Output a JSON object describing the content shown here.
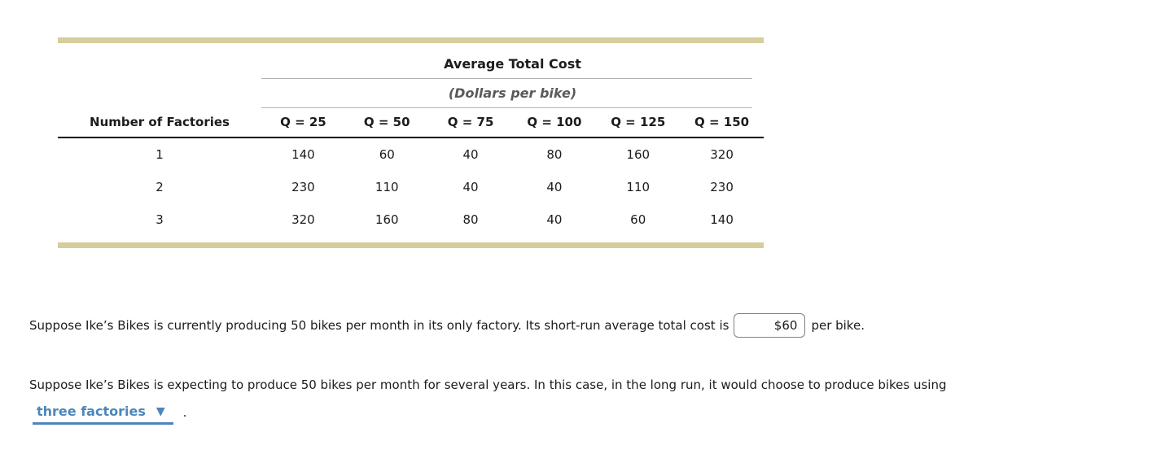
{
  "table": {
    "title": "Average Total Cost",
    "subtitle": "(Dollars per bike)",
    "row_header_label": "Number of Factories",
    "columns": [
      "Q = 25",
      "Q = 50",
      "Q = 75",
      "Q = 100",
      "Q = 125",
      "Q = 150"
    ],
    "rows": [
      {
        "factories": "1",
        "values": [
          "140",
          "60",
          "40",
          "80",
          "160",
          "320"
        ]
      },
      {
        "factories": "2",
        "values": [
          "230",
          "110",
          "40",
          "40",
          "110",
          "230"
        ]
      },
      {
        "factories": "3",
        "values": [
          "320",
          "160",
          "80",
          "40",
          "60",
          "140"
        ]
      }
    ]
  },
  "question_short_run": {
    "text_before": "Suppose Ike’s Bikes is currently producing 50 bikes per month in its only factory. Its short-run average total cost is",
    "input_value": "$60",
    "text_after": "per bike."
  },
  "question_long_run": {
    "text": "Suppose Ike’s Bikes is expecting to produce 50 bikes per month for several years. In this case, in the long run, it would choose to produce bikes using",
    "dropdown_value": "three factories",
    "dropdown_icon": "▼",
    "text_after": "."
  },
  "colors": {
    "accent_tan": "#d5cd9b",
    "rule_gray": "#b0b0b0",
    "link_blue": "#4d86ba"
  }
}
